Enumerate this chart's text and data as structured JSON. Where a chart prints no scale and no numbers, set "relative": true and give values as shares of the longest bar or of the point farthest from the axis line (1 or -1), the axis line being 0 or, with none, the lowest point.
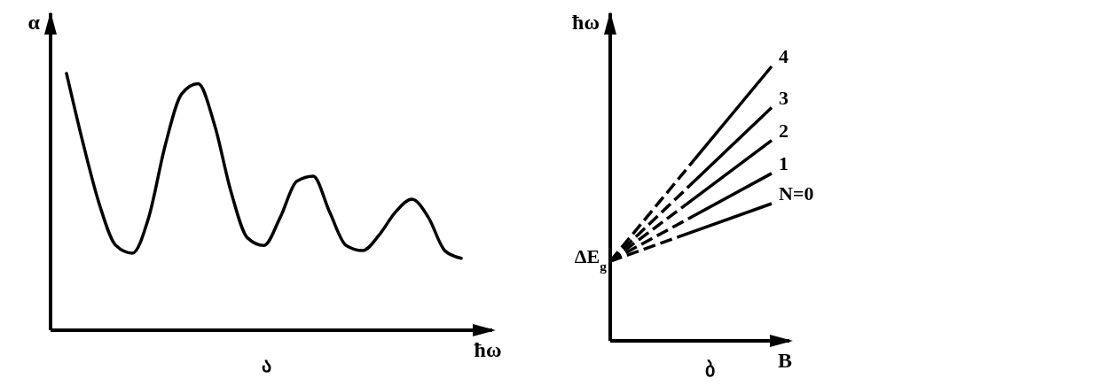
{
  "chart_data": [
    {
      "type": "line",
      "relative": true,
      "xlabel": "ħω",
      "ylabel": "α",
      "categories": [
        null,
        null,
        null,
        null,
        null,
        null,
        null,
        null,
        null,
        null,
        null,
        null,
        null,
        null,
        null,
        null,
        null,
        null,
        null,
        null,
        null,
        null,
        null,
        null,
        null
      ],
      "series": [
        {
          "color": "#000000",
          "values": [
            1,
            0.73,
            0.49,
            0.33,
            0.3,
            0.44,
            0.72,
            0.92,
            0.96,
            0.8,
            0.54,
            0.36,
            0.33,
            0.44,
            0.58,
            0.6,
            0.46,
            0.33,
            0.31,
            0.37,
            0.46,
            0.51,
            0.44,
            0.31,
            0.28
          ]
        }
      ],
      "annotations": [
        "ა"
      ]
    },
    {
      "type": "line",
      "relative": true,
      "xlabel": "B",
      "ylabel": "ħω",
      "categories": [
        null,
        null
      ],
      "series": [
        {
          "name": "4",
          "color": "#000000",
          "line_style": "dashed",
          "values": [
            0.29,
            1
          ]
        },
        {
          "name": "3",
          "color": "#000000",
          "line_style": "dashed",
          "values": [
            0.29,
            0.85
          ]
        },
        {
          "name": "2",
          "color": "#000000",
          "line_style": "dashed",
          "values": [
            0.29,
            0.73
          ]
        },
        {
          "name": "1",
          "color": "#000000",
          "line_style": "dashed",
          "values": [
            0.29,
            0.61
          ]
        },
        {
          "name": "N=0",
          "color": "#000000",
          "line_style": "dashed",
          "values": [
            0.29,
            0.5
          ]
        }
      ],
      "annotations": [
        "ΔE$_{g}$",
        "ბ"
      ]
    }
  ]
}
